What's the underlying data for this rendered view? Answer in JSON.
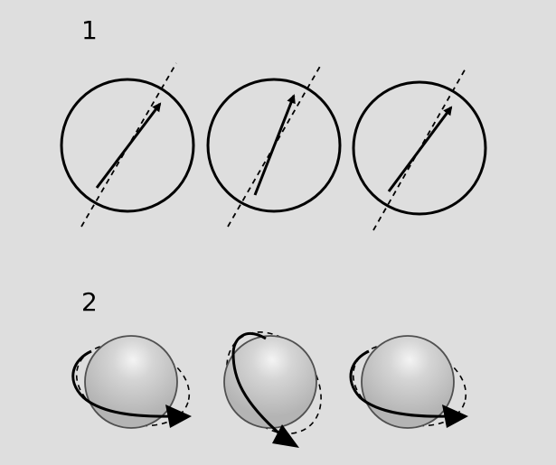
{
  "panels": [
    {
      "label": "1"
    },
    {
      "label": "2"
    }
  ],
  "colors": {
    "background": "#dedede",
    "stroke": "#000000",
    "sphere_base": "#b4b4b4",
    "sphere_highlight": "#f4f4f4",
    "sphere_outline": "#505050"
  }
}
